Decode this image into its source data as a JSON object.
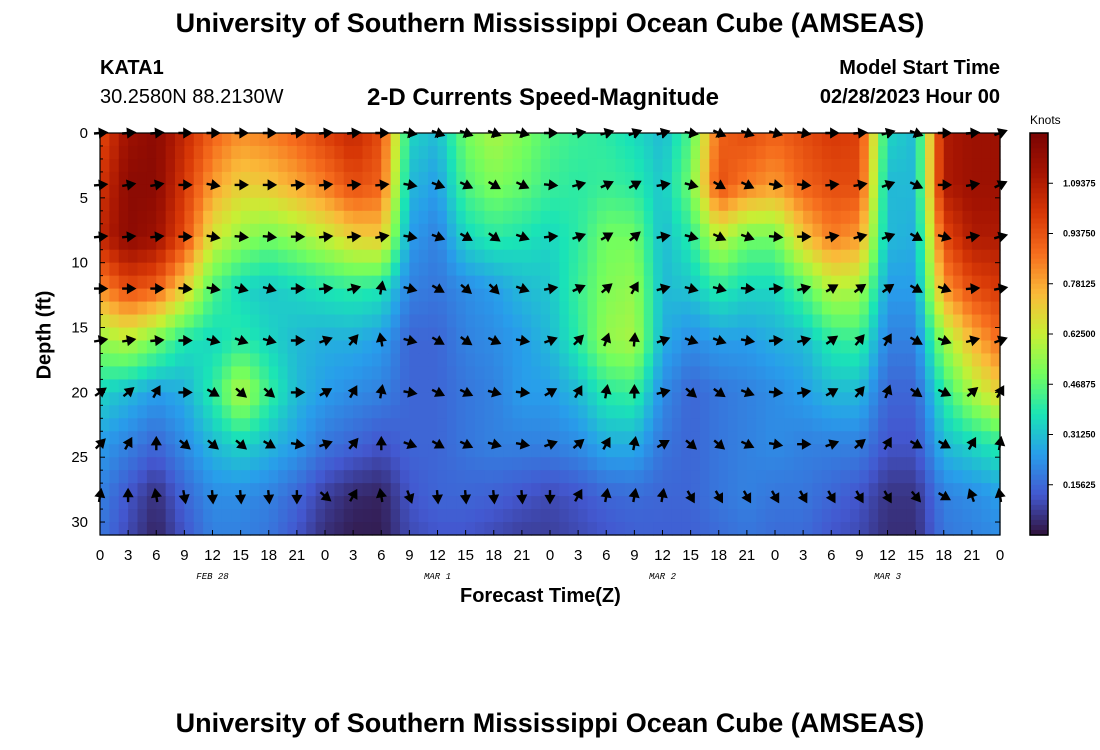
{
  "header": {
    "title": "University of Southern Mississippi Ocean Cube (AMSEAS)",
    "station": "KATA1",
    "coords": "30.2580N  88.2130W",
    "plot_title": "2-D Currents Speed-Magnitude",
    "start_label": "Model Start Time",
    "start_value": "02/28/2023 Hour 00"
  },
  "footer": {
    "title": "University of Southern Mississippi Ocean Cube (AMSEAS)"
  },
  "chart_data": {
    "type": "heatmap",
    "title": "2-D Currents Speed-Magnitude",
    "xlabel": "Forecast Time(Z)",
    "ylabel": "Depth (ft)",
    "colorbar_label": "Knots",
    "x_ticks": [
      "0",
      "3",
      "6",
      "9",
      "12",
      "15",
      "18",
      "21",
      "0",
      "3",
      "6",
      "9",
      "12",
      "15",
      "18",
      "21",
      "0",
      "3",
      "6",
      "9",
      "12",
      "15",
      "18",
      "21",
      "0",
      "3",
      "6",
      "9",
      "12",
      "15",
      "18",
      "21",
      "0"
    ],
    "date_labels": [
      {
        "label": "FEB 28",
        "hour": 12
      },
      {
        "label": "MAR 1",
        "hour": 36
      },
      {
        "label": "MAR 2",
        "hour": 60
      },
      {
        "label": "MAR 3",
        "hour": 84
      }
    ],
    "y_ticks": [
      0,
      5,
      10,
      15,
      20,
      25,
      30
    ],
    "x_range_hours": [
      0,
      96
    ],
    "y_range_ft": [
      0,
      31
    ],
    "colorbar_ticks": [
      "1.09375",
      "0.93750",
      "0.78125",
      "0.62500",
      "0.46875",
      "0.31250",
      "0.15625"
    ],
    "colorbar_range": [
      0,
      1.25
    ],
    "speed_grid": {
      "hours": [
        0,
        3,
        6,
        9,
        12,
        15,
        18,
        21,
        24,
        27,
        30,
        33,
        36,
        39,
        42,
        45,
        48,
        51,
        54,
        57,
        60,
        63,
        66,
        69,
        72,
        75,
        78,
        81,
        84,
        87,
        90,
        93,
        96
      ],
      "depths_ft": [
        0,
        4,
        8,
        12,
        16,
        20,
        24,
        28,
        31
      ],
      "values": [
        [
          0.95,
          1.15,
          1.2,
          1.05,
          0.9,
          0.82,
          0.85,
          0.9,
          0.98,
          1.05,
          0.95,
          0.35,
          0.3,
          0.5,
          0.58,
          0.52,
          0.45,
          0.42,
          0.4,
          0.36,
          0.3,
          0.45,
          0.9,
          0.95,
          0.9,
          0.95,
          1.0,
          0.98,
          0.35,
          0.3,
          1.1,
          1.15,
          1.15
        ],
        [
          1.0,
          1.2,
          1.2,
          1.0,
          0.8,
          0.7,
          0.72,
          0.78,
          0.85,
          0.95,
          0.9,
          0.3,
          0.25,
          0.45,
          0.52,
          0.48,
          0.42,
          0.4,
          0.42,
          0.4,
          0.32,
          0.5,
          0.95,
          0.85,
          0.8,
          0.9,
          0.95,
          0.95,
          0.3,
          0.3,
          1.1,
          1.15,
          1.15
        ],
        [
          1.05,
          1.2,
          1.15,
          0.95,
          0.65,
          0.55,
          0.5,
          0.55,
          0.62,
          0.7,
          0.72,
          0.25,
          0.2,
          0.35,
          0.4,
          0.38,
          0.35,
          0.4,
          0.5,
          0.5,
          0.3,
          0.4,
          0.62,
          0.5,
          0.5,
          0.72,
          0.85,
          0.8,
          0.3,
          0.28,
          0.95,
          1.1,
          1.1
        ],
        [
          0.82,
          0.95,
          0.9,
          0.7,
          0.45,
          0.35,
          0.32,
          0.35,
          0.38,
          0.4,
          0.38,
          0.2,
          0.18,
          0.22,
          0.25,
          0.3,
          0.32,
          0.42,
          0.52,
          0.55,
          0.3,
          0.32,
          0.4,
          0.35,
          0.35,
          0.45,
          0.6,
          0.58,
          0.25,
          0.25,
          0.8,
          0.95,
          1.0
        ],
        [
          0.55,
          0.6,
          0.5,
          0.38,
          0.35,
          0.4,
          0.35,
          0.3,
          0.28,
          0.28,
          0.25,
          0.15,
          0.15,
          0.2,
          0.22,
          0.25,
          0.3,
          0.4,
          0.55,
          0.58,
          0.28,
          0.22,
          0.25,
          0.25,
          0.28,
          0.3,
          0.4,
          0.42,
          0.2,
          0.2,
          0.55,
          0.75,
          0.88
        ],
        [
          0.35,
          0.3,
          0.25,
          0.28,
          0.4,
          0.6,
          0.42,
          0.3,
          0.25,
          0.22,
          0.2,
          0.15,
          0.15,
          0.18,
          0.2,
          0.25,
          0.25,
          0.3,
          0.4,
          0.42,
          0.22,
          0.15,
          0.18,
          0.2,
          0.22,
          0.25,
          0.3,
          0.3,
          0.15,
          0.15,
          0.4,
          0.58,
          0.7
        ],
        [
          0.25,
          0.2,
          0.15,
          0.22,
          0.3,
          0.35,
          0.3,
          0.25,
          0.18,
          0.15,
          0.12,
          0.15,
          0.15,
          0.18,
          0.2,
          0.2,
          0.2,
          0.22,
          0.28,
          0.28,
          0.18,
          0.15,
          0.18,
          0.2,
          0.22,
          0.2,
          0.2,
          0.2,
          0.12,
          0.12,
          0.3,
          0.35,
          0.4
        ],
        [
          0.2,
          0.12,
          0.05,
          0.15,
          0.22,
          0.22,
          0.2,
          0.15,
          0.08,
          0.04,
          0.03,
          0.12,
          0.15,
          0.15,
          0.14,
          0.12,
          0.1,
          0.12,
          0.15,
          0.16,
          0.15,
          0.15,
          0.18,
          0.2,
          0.18,
          0.18,
          0.15,
          0.12,
          0.06,
          0.06,
          0.2,
          0.22,
          0.25
        ],
        [
          0.18,
          0.1,
          0.03,
          0.12,
          0.2,
          0.2,
          0.18,
          0.12,
          0.05,
          0.02,
          0.02,
          0.1,
          0.12,
          0.12,
          0.1,
          0.08,
          0.08,
          0.1,
          0.12,
          0.14,
          0.14,
          0.14,
          0.16,
          0.18,
          0.16,
          0.16,
          0.12,
          0.1,
          0.05,
          0.05,
          0.18,
          0.2,
          0.22
        ]
      ]
    },
    "arrows": {
      "hours": [
        0,
        3,
        6,
        9,
        12,
        15,
        18,
        21,
        24,
        27,
        30,
        33,
        36,
        39,
        42,
        45,
        48,
        51,
        54,
        57,
        60,
        63,
        66,
        69,
        72,
        75,
        78,
        81,
        84,
        87,
        90,
        93,
        96
      ],
      "depths_ft": [
        0,
        4,
        8,
        12,
        16,
        20,
        24,
        28
      ],
      "direction_deg": [
        [
          5,
          5,
          5,
          0,
          0,
          0,
          0,
          5,
          5,
          5,
          0,
          350,
          340,
          340,
          340,
          345,
          0,
          10,
          15,
          20,
          15,
          350,
          335,
          340,
          345,
          350,
          0,
          5,
          15,
          340,
          0,
          5,
          20
        ],
        [
          5,
          10,
          10,
          0,
          350,
          0,
          0,
          5,
          5,
          5,
          5,
          350,
          340,
          335,
          330,
          335,
          355,
          15,
          25,
          30,
          10,
          345,
          330,
          335,
          350,
          355,
          5,
          10,
          20,
          335,
          0,
          10,
          25
        ],
        [
          5,
          5,
          5,
          0,
          350,
          355,
          355,
          0,
          5,
          5,
          10,
          350,
          340,
          330,
          325,
          340,
          5,
          20,
          30,
          40,
          10,
          345,
          335,
          340,
          355,
          0,
          10,
          15,
          20,
          330,
          345,
          10,
          15
        ],
        [
          0,
          0,
          0,
          355,
          350,
          345,
          345,
          0,
          5,
          15,
          80,
          345,
          330,
          320,
          315,
          340,
          10,
          25,
          40,
          60,
          15,
          345,
          345,
          355,
          5,
          15,
          30,
          35,
          35,
          330,
          340,
          5,
          10
        ],
        [
          10,
          10,
          5,
          0,
          345,
          340,
          345,
          0,
          20,
          50,
          100,
          345,
          330,
          325,
          335,
          350,
          20,
          45,
          70,
          85,
          20,
          340,
          340,
          350,
          5,
          15,
          35,
          50,
          60,
          330,
          340,
          15,
          20
        ],
        [
          35,
          40,
          60,
          0,
          330,
          320,
          320,
          0,
          30,
          60,
          80,
          350,
          335,
          335,
          345,
          355,
          30,
          60,
          80,
          90,
          15,
          320,
          325,
          340,
          355,
          10,
          30,
          50,
          70,
          325,
          335,
          40,
          60
        ],
        [
          45,
          60,
          90,
          320,
          320,
          320,
          330,
          350,
          20,
          50,
          90,
          340,
          330,
          335,
          345,
          350,
          20,
          40,
          60,
          80,
          30,
          320,
          320,
          335,
          350,
          0,
          20,
          40,
          60,
          330,
          330,
          60,
          80
        ],
        [
          80,
          90,
          100,
          280,
          275,
          275,
          275,
          270,
          320,
          60,
          100,
          290,
          275,
          275,
          275,
          275,
          270,
          60,
          80,
          80,
          80,
          300,
          300,
          300,
          300,
          300,
          300,
          300,
          300,
          310,
          330,
          110,
          100
        ]
      ]
    }
  }
}
